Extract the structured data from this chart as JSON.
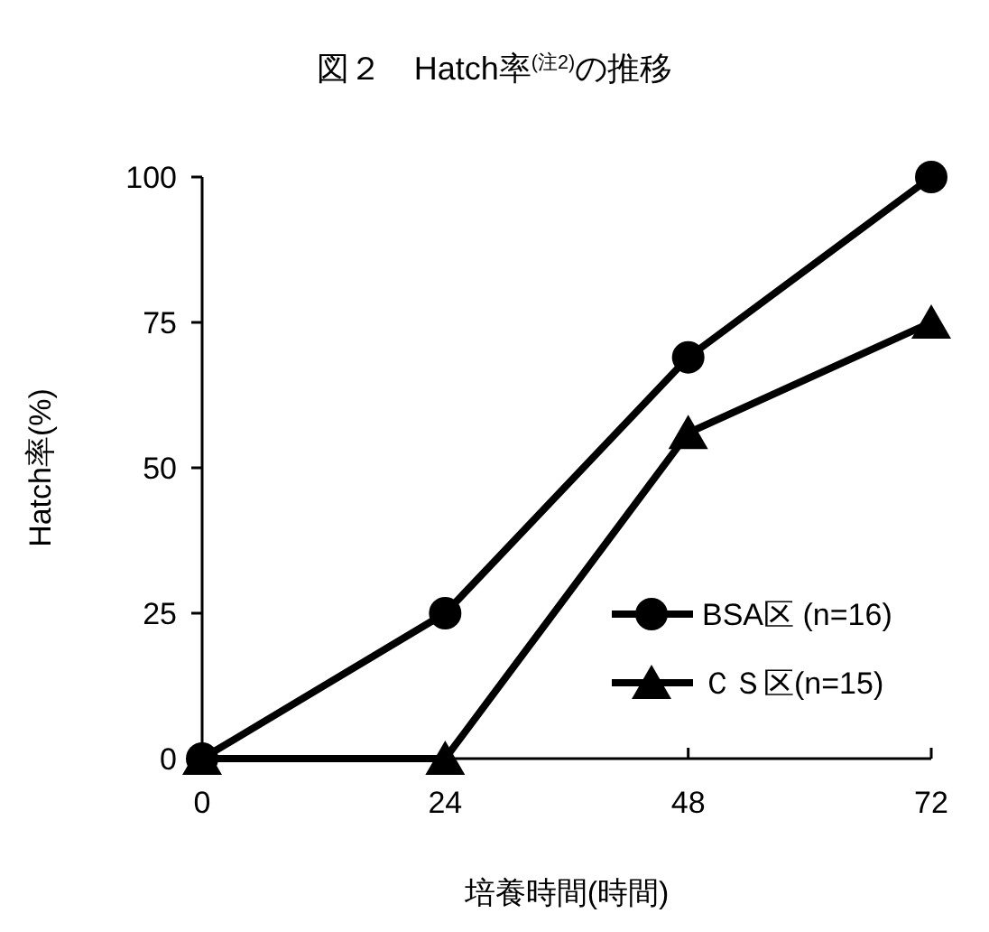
{
  "chart_data": {
    "type": "line",
    "title": "図２　Hatch率$^{(注2)}$の推移",
    "xlabel": "培養時間(時間)",
    "ylabel": "Hatch率(%)",
    "x": [
      0,
      24,
      48,
      72
    ],
    "xlim": [
      0,
      72
    ],
    "xticks": [
      0,
      24,
      48,
      72
    ],
    "ylim": [
      0,
      100
    ],
    "yticks": [
      0,
      25,
      50,
      75,
      100
    ],
    "grid": false,
    "legend": "bottom right",
    "series": [
      {
        "name": "BSA区 (n=16)",
        "color": "#000000",
        "marker": "circle",
        "values": [
          0,
          25,
          69,
          100
        ]
      },
      {
        "name": "ＣＳ区(n=15)",
        "color": "#000000",
        "marker": "triangle",
        "values": [
          0,
          0,
          56,
          75
        ]
      }
    ]
  }
}
